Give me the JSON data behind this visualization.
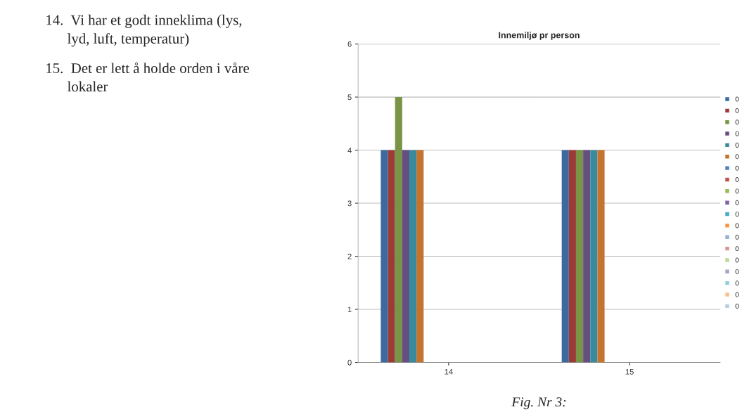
{
  "chart_data": {
    "type": "bar",
    "title": "Innemiljø pr person",
    "categories": [
      "14",
      "15"
    ],
    "series": [
      {
        "name": "0",
        "color": "#3C6AA0",
        "values": [
          4,
          4
        ]
      },
      {
        "name": "0",
        "color": "#9B3B38",
        "values": [
          4,
          4
        ]
      },
      {
        "name": "0",
        "color": "#7A9447",
        "values": [
          5,
          4
        ]
      },
      {
        "name": "0",
        "color": "#654F80",
        "values": [
          4,
          4
        ]
      },
      {
        "name": "0",
        "color": "#3A8A9D",
        "values": [
          4,
          4
        ]
      },
      {
        "name": "0",
        "color": "#C5742F",
        "values": [
          4,
          4
        ]
      },
      {
        "name": "0",
        "color": "#4F81BD",
        "values": [
          0,
          0
        ]
      },
      {
        "name": "0",
        "color": "#C0504D",
        "values": [
          0,
          0
        ]
      },
      {
        "name": "0",
        "color": "#9BBB59",
        "values": [
          0,
          0
        ]
      },
      {
        "name": "0",
        "color": "#8064A2",
        "values": [
          0,
          0
        ]
      },
      {
        "name": "0",
        "color": "#4BACC6",
        "values": [
          0,
          0
        ]
      },
      {
        "name": "0",
        "color": "#F79646",
        "values": [
          0,
          0
        ]
      },
      {
        "name": "0",
        "color": "#95B3D7",
        "values": [
          0,
          0
        ]
      },
      {
        "name": "0",
        "color": "#D99694",
        "values": [
          0,
          0
        ]
      },
      {
        "name": "0",
        "color": "#C3D69B",
        "values": [
          0,
          0
        ]
      },
      {
        "name": "0",
        "color": "#B3A2C7",
        "values": [
          0,
          0
        ]
      },
      {
        "name": "0",
        "color": "#93CDDD",
        "values": [
          0,
          0
        ]
      },
      {
        "name": "0",
        "color": "#FAC090",
        "values": [
          0,
          0
        ]
      },
      {
        "name": "0",
        "color": "#B9CDE5",
        "values": [
          0,
          0
        ]
      }
    ],
    "ylim": [
      0,
      6
    ],
    "yticks": [
      0,
      1,
      2,
      3,
      4,
      5,
      6
    ],
    "grid": "y",
    "legend": "right",
    "annotations": [
      "14.  Vi har et godt inneklima (lys,\n      lyd, luft, temperatur)",
      "15.  Det er lett å holde orden i våre\n      lokaler",
      "Fig. Nr 3:"
    ]
  }
}
